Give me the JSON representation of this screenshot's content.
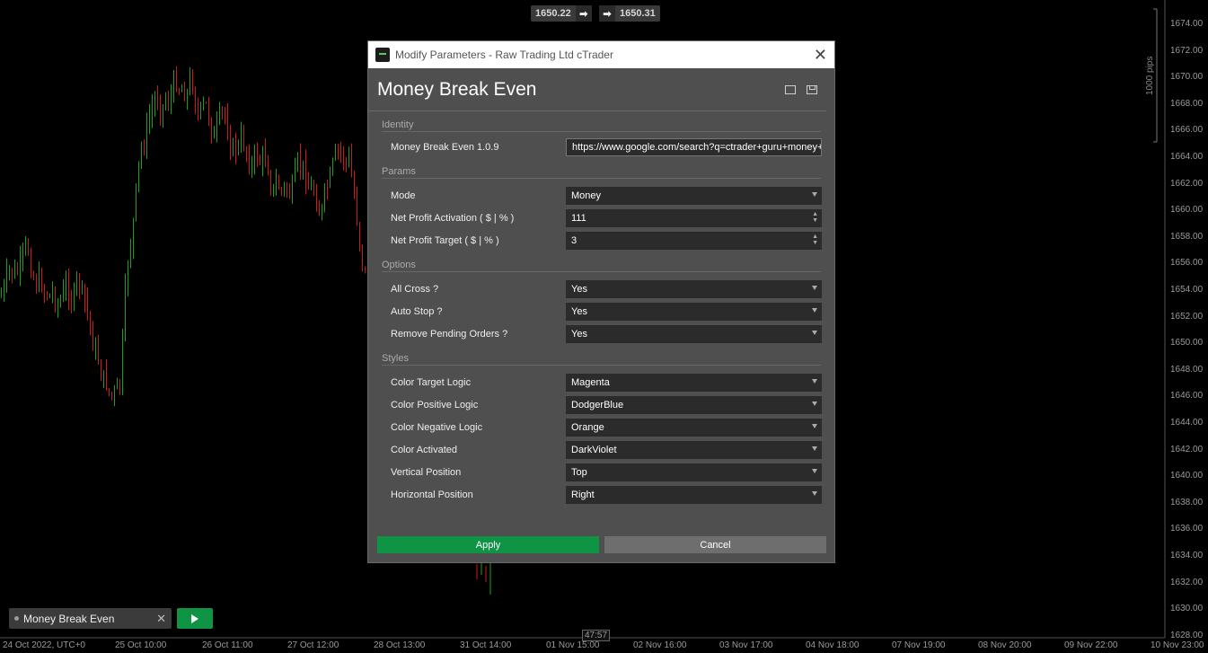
{
  "chart": {
    "bid_price": "1650.22",
    "ask_price": "1650.31",
    "y_ticks": [
      "1674.00",
      "1672.00",
      "1670.00",
      "1668.00",
      "1666.00",
      "1664.00",
      "1662.00",
      "1660.00",
      "1658.00",
      "1656.00",
      "1654.00",
      "1652.00",
      "1650.00",
      "1648.00",
      "1646.00",
      "1644.00",
      "1642.00",
      "1640.00",
      "1638.00",
      "1636.00",
      "1634.00",
      "1632.00",
      "1630.00",
      "1628.00"
    ],
    "x_ticks": [
      "24 Oct 2022, UTC+0",
      "25 Oct 10:00",
      "26 Oct 11:00",
      "27 Oct 12:00",
      "28 Oct 13:00",
      "31 Oct 14:00",
      "01 Nov 15:00",
      "02 Nov 16:00",
      "03 Nov 17:00",
      "04 Nov 18:00",
      "07 Nov 19:00",
      "08 Nov 20:00",
      "09 Nov 22:00",
      "10 Nov 23:00"
    ],
    "pips_label": "1000 pips",
    "countdown": "47:57",
    "candle_up_color": "#17a317",
    "candle_down_color": "#cc1a1a"
  },
  "bot": {
    "name": "Money Break Even"
  },
  "dialog": {
    "window_title": "Modify Parameters - Raw Trading Ltd cTrader",
    "heading": "Money Break Even",
    "sections": {
      "identity": "Identity",
      "params": "Params",
      "options": "Options",
      "styles": "Styles"
    },
    "identity": {
      "label": "Money Break Even 1.0.9",
      "value": "https://www.google.com/search?q=ctrader+guru+money+break+even"
    },
    "params": [
      {
        "label": "Mode",
        "value": "Money"
      },
      {
        "label": "Net Profit Activation ( $ | % )",
        "value": "111"
      },
      {
        "label": "Net Profit Target ( $ | % )",
        "value": "3"
      }
    ],
    "options": [
      {
        "label": "All Cross ?",
        "value": "Yes"
      },
      {
        "label": "Auto Stop ?",
        "value": "Yes"
      },
      {
        "label": "Remove Pending Orders ?",
        "value": "Yes"
      }
    ],
    "styles": [
      {
        "label": "Color Target Logic",
        "value": "Magenta"
      },
      {
        "label": "Color Positive Logic",
        "value": "DodgerBlue"
      },
      {
        "label": "Color Negative Logic",
        "value": "Orange"
      },
      {
        "label": "Color Activated",
        "value": "DarkViolet"
      },
      {
        "label": "Vertical Position",
        "value": "Top"
      },
      {
        "label": "Horizontal Position",
        "value": "Right"
      }
    ],
    "apply_label": "Apply",
    "cancel_label": "Cancel"
  }
}
